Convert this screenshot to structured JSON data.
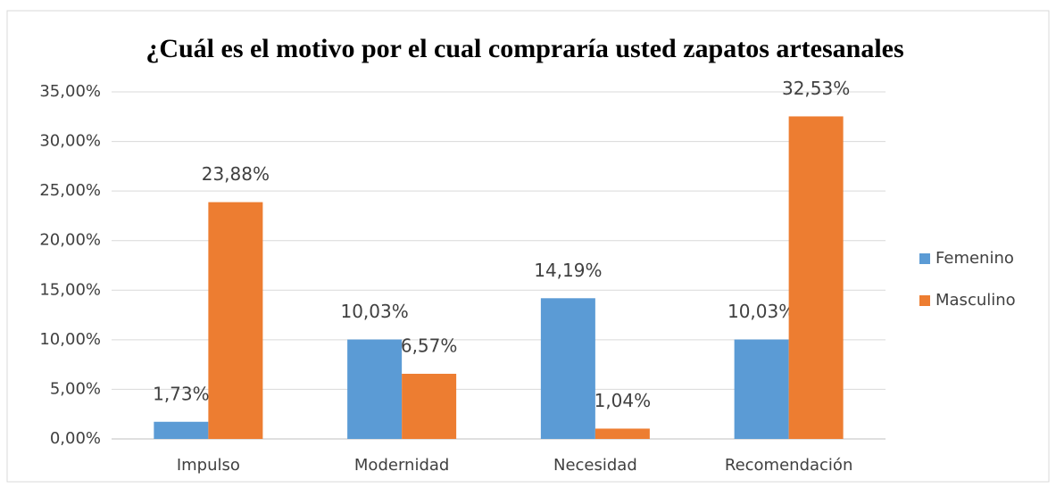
{
  "chart_data": {
    "type": "bar",
    "title": "¿Cuál es el motivo por el cual compraría usted zapatos artesanales",
    "categories": [
      "Impulso",
      "Modernidad",
      "Necesidad",
      "Recomendación"
    ],
    "series": [
      {
        "name": "Femenino",
        "color": "#5b9bd5",
        "values": [
          1.73,
          10.03,
          14.19,
          10.03
        ],
        "value_labels": [
          "1,73%",
          "10,03%",
          "14,19%",
          "10,03%"
        ]
      },
      {
        "name": "Masculino",
        "color": "#ed7d31",
        "values": [
          23.88,
          6.57,
          1.04,
          32.53
        ],
        "value_labels": [
          "23,88%",
          "6,57%",
          "1,04%",
          "32,53%"
        ]
      }
    ],
    "ylim": [
      0,
      35
    ],
    "yticks": [
      {
        "value": 0,
        "label": "0,00%"
      },
      {
        "value": 5,
        "label": "5,00%"
      },
      {
        "value": 10,
        "label": "10,00%"
      },
      {
        "value": 15,
        "label": "15,00%"
      },
      {
        "value": 20,
        "label": "20,00%"
      },
      {
        "value": 25,
        "label": "25,00%"
      },
      {
        "value": 30,
        "label": "30,00%"
      },
      {
        "value": 35,
        "label": "35,00%"
      }
    ],
    "grid": true,
    "legend": "right"
  }
}
